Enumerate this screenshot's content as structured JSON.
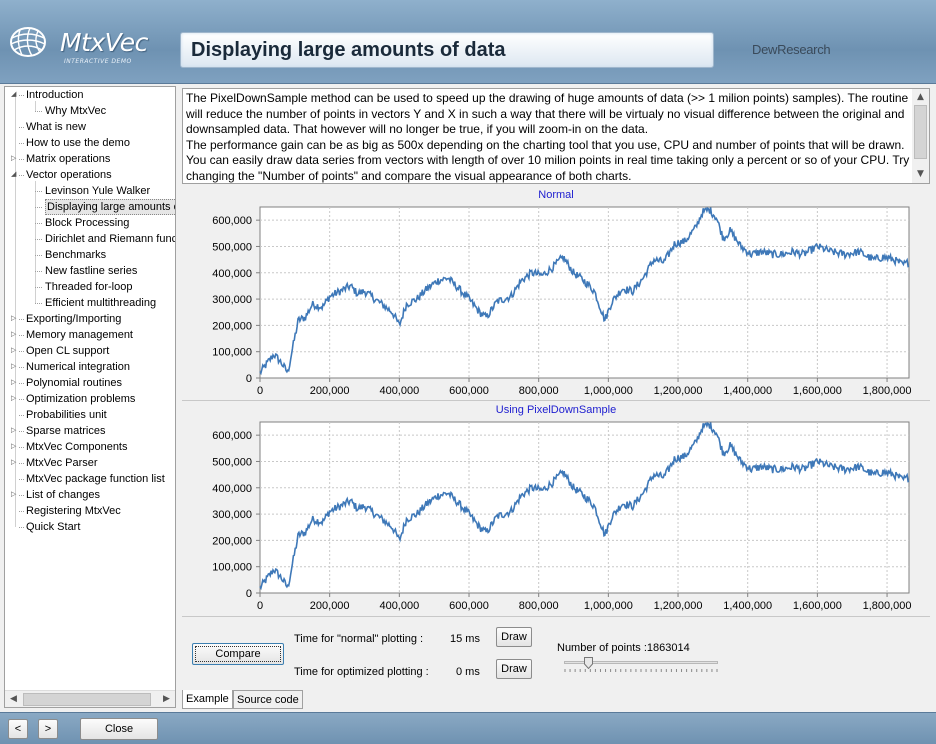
{
  "header": {
    "logo_text": "MtxVec",
    "logo_subtitle": "INTERACTIVE DEMO",
    "page_title": "Displaying large amounts of data",
    "brand": "DewResearch"
  },
  "tree": {
    "items": [
      {
        "label": "Introduction",
        "level": 0,
        "expander": "expanded"
      },
      {
        "label": "Why MtxVec",
        "level": 1,
        "expander": "none"
      },
      {
        "label": "What is new",
        "level": 0,
        "expander": "none"
      },
      {
        "label": "How to use the demo",
        "level": 0,
        "expander": "none"
      },
      {
        "label": "Matrix operations",
        "level": 0,
        "expander": "collapsed"
      },
      {
        "label": "Vector operations",
        "level": 0,
        "expander": "expanded"
      },
      {
        "label": "Levinson Yule Walker",
        "level": 1,
        "expander": "none"
      },
      {
        "label": "Displaying large amounts of",
        "level": 1,
        "expander": "none",
        "selected": true
      },
      {
        "label": "Block Processing",
        "level": 1,
        "expander": "none"
      },
      {
        "label": "Dirichlet and Riemann funcl",
        "level": 1,
        "expander": "none"
      },
      {
        "label": "Benchmarks",
        "level": 1,
        "expander": "none"
      },
      {
        "label": "New fastline series",
        "level": 1,
        "expander": "none"
      },
      {
        "label": "Threaded for-loop",
        "level": 1,
        "expander": "none"
      },
      {
        "label": "Efficient multithreading",
        "level": 1,
        "expander": "none"
      },
      {
        "label": "Exporting/Importing",
        "level": 0,
        "expander": "collapsed"
      },
      {
        "label": "Memory management",
        "level": 0,
        "expander": "collapsed"
      },
      {
        "label": "Open CL support",
        "level": 0,
        "expander": "collapsed"
      },
      {
        "label": "Numerical integration",
        "level": 0,
        "expander": "collapsed"
      },
      {
        "label": "Polynomial routines",
        "level": 0,
        "expander": "collapsed"
      },
      {
        "label": "Optimization problems",
        "level": 0,
        "expander": "collapsed"
      },
      {
        "label": "Probabilities unit",
        "level": 0,
        "expander": "none"
      },
      {
        "label": "Sparse matrices",
        "level": 0,
        "expander": "collapsed"
      },
      {
        "label": "MtxVec Components",
        "level": 0,
        "expander": "collapsed"
      },
      {
        "label": "MtxVec Parser",
        "level": 0,
        "expander": "collapsed"
      },
      {
        "label": "MtxVec package function list",
        "level": 0,
        "expander": "none"
      },
      {
        "label": "List of changes",
        "level": 0,
        "expander": "collapsed"
      },
      {
        "label": "Registering MtxVec",
        "level": 0,
        "expander": "none"
      },
      {
        "label": "Quick Start",
        "level": 0,
        "expander": "none"
      }
    ]
  },
  "description": {
    "text": "The PixelDownSample method can be used to speed up the drawing of huge amounts of data (>> 1 milion points) samples). The routine will reduce the number of points in vectors Y and X in such a way that there will be virtualy no visual difference between the original and downsampled data. That however will no longer be true, if you will zoom-in on the data.\nThe performance gain can be as big as 500x depending on the charting tool that you use, CPU and number of points that will be drawn. You can easily draw data series from vectors with length of over 10 milion points in real time taking only a percent or so of your CPU. Try changing the \"Number of points\" and compare the visual appearance of both charts."
  },
  "chart_data": [
    {
      "type": "line",
      "title": "Normal",
      "xlabel": "",
      "ylabel": "",
      "xlim": [
        0,
        1863014
      ],
      "ylim": [
        0,
        650000
      ],
      "x_ticks": [
        0,
        200000,
        400000,
        600000,
        800000,
        1000000,
        1200000,
        1400000,
        1600000,
        1800000
      ],
      "x_tick_labels": [
        "0",
        "200,000",
        "400,000",
        "600,000",
        "800,000",
        "1,000,000",
        "1,200,000",
        "1,400,000",
        "1,600,000",
        "1,800,000"
      ],
      "y_ticks": [
        0,
        100000,
        200000,
        300000,
        400000,
        500000,
        600000
      ],
      "y_tick_labels": [
        "0",
        "100,000",
        "200,000",
        "300,000",
        "400,000",
        "500,000",
        "600,000"
      ],
      "grid": true,
      "line_color": "#3e78b8",
      "series": [
        {
          "x": [
            0,
            40000,
            60000,
            80000,
            90000,
            110000,
            130000,
            150000,
            180000,
            200000,
            230000,
            260000,
            280000,
            300000,
            330000,
            360000,
            380000,
            400000,
            420000,
            450000,
            480000,
            510000,
            540000,
            570000,
            600000,
            630000,
            650000,
            680000,
            720000,
            750000,
            780000,
            810000,
            840000,
            870000,
            900000,
            930000,
            960000,
            990000,
            1010000,
            1040000,
            1070000,
            1100000,
            1130000,
            1160000,
            1190000,
            1220000,
            1250000,
            1270000,
            1290000,
            1310000,
            1330000,
            1350000,
            1380000,
            1410000,
            1440000,
            1470000,
            1500000,
            1530000,
            1560000,
            1600000,
            1640000,
            1680000,
            1720000,
            1760000,
            1790000,
            1820000,
            1845000,
            1863014
          ],
          "y": [
            20000,
            90000,
            60000,
            20000,
            90000,
            220000,
            230000,
            280000,
            270000,
            310000,
            330000,
            350000,
            320000,
            330000,
            300000,
            270000,
            250000,
            200000,
            280000,
            300000,
            340000,
            370000,
            380000,
            340000,
            300000,
            250000,
            230000,
            290000,
            310000,
            370000,
            400000,
            390000,
            420000,
            460000,
            400000,
            370000,
            330000,
            220000,
            290000,
            340000,
            330000,
            380000,
            450000,
            440000,
            510000,
            520000,
            570000,
            630000,
            640000,
            610000,
            530000,
            560000,
            500000,
            470000,
            480000,
            470000,
            470000,
            480000,
            470000,
            500000,
            480000,
            470000,
            480000,
            450000,
            460000,
            450000,
            430000,
            440000
          ]
        }
      ]
    },
    {
      "type": "line",
      "title": "Using PixelDownSample",
      "xlabel": "",
      "ylabel": "",
      "xlim": [
        0,
        1863014
      ],
      "ylim": [
        0,
        650000
      ],
      "x_ticks": [
        0,
        200000,
        400000,
        600000,
        800000,
        1000000,
        1200000,
        1400000,
        1600000,
        1800000
      ],
      "x_tick_labels": [
        "0",
        "200,000",
        "400,000",
        "600,000",
        "800,000",
        "1,000,000",
        "1,200,000",
        "1,400,000",
        "1,600,000",
        "1,800,000"
      ],
      "y_ticks": [
        0,
        100000,
        200000,
        300000,
        400000,
        500000,
        600000
      ],
      "y_tick_labels": [
        "0",
        "100,000",
        "200,000",
        "300,000",
        "400,000",
        "500,000",
        "600,000"
      ],
      "grid": true,
      "line_color": "#3e78b8",
      "series": [
        {
          "x": [
            0,
            40000,
            60000,
            80000,
            90000,
            110000,
            130000,
            150000,
            180000,
            200000,
            230000,
            260000,
            280000,
            300000,
            330000,
            360000,
            380000,
            400000,
            420000,
            450000,
            480000,
            510000,
            540000,
            570000,
            600000,
            630000,
            650000,
            680000,
            720000,
            750000,
            780000,
            810000,
            840000,
            870000,
            900000,
            930000,
            960000,
            990000,
            1010000,
            1040000,
            1070000,
            1100000,
            1130000,
            1160000,
            1190000,
            1220000,
            1250000,
            1270000,
            1290000,
            1310000,
            1330000,
            1350000,
            1380000,
            1410000,
            1440000,
            1470000,
            1500000,
            1530000,
            1560000,
            1600000,
            1640000,
            1680000,
            1720000,
            1760000,
            1790000,
            1820000,
            1845000,
            1863014
          ],
          "y": [
            20000,
            90000,
            60000,
            20000,
            90000,
            220000,
            230000,
            280000,
            270000,
            310000,
            330000,
            350000,
            320000,
            330000,
            300000,
            270000,
            250000,
            200000,
            280000,
            300000,
            340000,
            370000,
            380000,
            340000,
            300000,
            250000,
            230000,
            290000,
            310000,
            370000,
            400000,
            390000,
            420000,
            460000,
            400000,
            370000,
            330000,
            220000,
            290000,
            340000,
            330000,
            380000,
            450000,
            440000,
            510000,
            520000,
            570000,
            630000,
            640000,
            610000,
            530000,
            560000,
            500000,
            470000,
            480000,
            470000,
            470000,
            480000,
            470000,
            500000,
            480000,
            470000,
            480000,
            450000,
            460000,
            450000,
            430000,
            440000
          ]
        }
      ]
    }
  ],
  "controls": {
    "compare_label": "Compare",
    "normal_time_label": "Time for \"normal\" plotting :",
    "normal_time_value": "15 ms",
    "optimized_time_label": "Time for optimized plotting :",
    "optimized_time_value": "0 ms",
    "draw_label": "Draw",
    "points_label": "Number of points :1863014",
    "slider_fraction": 0.16
  },
  "tabs": [
    {
      "label": "Example",
      "active": true
    },
    {
      "label": "Source code",
      "active": false
    }
  ],
  "footer": {
    "prev_label": "<",
    "next_label": ">",
    "close_label": "Close"
  }
}
